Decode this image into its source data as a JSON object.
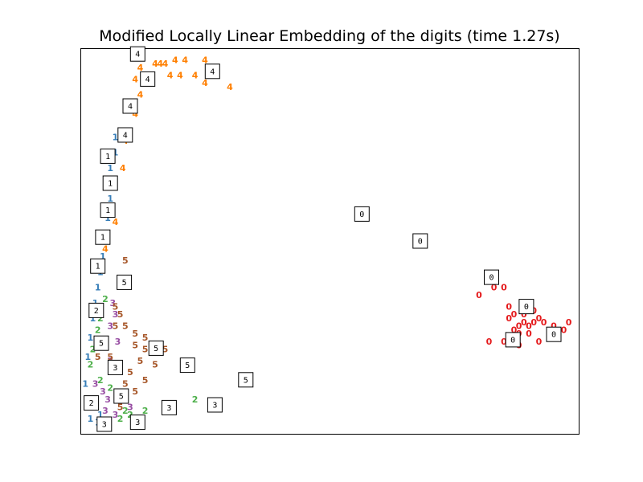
{
  "chart_data": {
    "type": "scatter",
    "title": "Modified Locally Linear Embedding of the digits (time 1.27s)",
    "xlabel": "",
    "ylabel": "",
    "xlim": [
      0,
      1
    ],
    "ylim": [
      0,
      1
    ],
    "grid": false,
    "series": [
      {
        "label": "0",
        "color": "#e41a1c",
        "points": [
          [
            0.85,
            0.38
          ],
          [
            0.83,
            0.38
          ],
          [
            0.86,
            0.3
          ],
          [
            0.87,
            0.27
          ],
          [
            0.88,
            0.28
          ],
          [
            0.89,
            0.29
          ],
          [
            0.9,
            0.28
          ],
          [
            0.91,
            0.29
          ],
          [
            0.88,
            0.26
          ],
          [
            0.92,
            0.3
          ],
          [
            0.93,
            0.29
          ],
          [
            0.94,
            0.26
          ],
          [
            0.9,
            0.26
          ],
          [
            0.87,
            0.31
          ],
          [
            0.89,
            0.31
          ],
          [
            0.91,
            0.32
          ],
          [
            0.95,
            0.28
          ],
          [
            0.97,
            0.27
          ],
          [
            0.98,
            0.29
          ],
          [
            0.96,
            0.25
          ],
          [
            0.85,
            0.24
          ],
          [
            0.82,
            0.24
          ],
          [
            0.88,
            0.23
          ],
          [
            0.92,
            0.24
          ],
          [
            0.86,
            0.33
          ],
          [
            0.8,
            0.36
          ]
        ]
      },
      {
        "label": "1",
        "color": "#377eb8",
        "points": [
          [
            0.07,
            0.77
          ],
          [
            0.07,
            0.73
          ],
          [
            0.06,
            0.69
          ],
          [
            0.065,
            0.65
          ],
          [
            0.06,
            0.61
          ],
          [
            0.055,
            0.56
          ],
          [
            0.05,
            0.5
          ],
          [
            0.045,
            0.46
          ],
          [
            0.04,
            0.42
          ],
          [
            0.035,
            0.38
          ],
          [
            0.03,
            0.34
          ],
          [
            0.025,
            0.3
          ],
          [
            0.02,
            0.25
          ],
          [
            0.015,
            0.2
          ],
          [
            0.01,
            0.13
          ],
          [
            0.015,
            0.08
          ],
          [
            0.02,
            0.04
          ],
          [
            0.035,
            0.03
          ],
          [
            0.04,
            0.05
          ]
        ]
      },
      {
        "label": "2",
        "color": "#4daf4a",
        "points": [
          [
            0.05,
            0.35
          ],
          [
            0.04,
            0.3
          ],
          [
            0.035,
            0.27
          ],
          [
            0.025,
            0.22
          ],
          [
            0.02,
            0.18
          ],
          [
            0.04,
            0.14
          ],
          [
            0.06,
            0.12
          ],
          [
            0.09,
            0.06
          ],
          [
            0.1,
            0.05
          ],
          [
            0.13,
            0.06
          ],
          [
            0.23,
            0.09
          ],
          [
            0.08,
            0.04
          ]
        ]
      },
      {
        "label": "3",
        "color": "#984ea3",
        "points": [
          [
            0.065,
            0.34
          ],
          [
            0.07,
            0.31
          ],
          [
            0.06,
            0.28
          ],
          [
            0.075,
            0.24
          ],
          [
            0.06,
            0.19
          ],
          [
            0.03,
            0.13
          ],
          [
            0.045,
            0.11
          ],
          [
            0.055,
            0.09
          ],
          [
            0.07,
            0.05
          ],
          [
            0.05,
            0.06
          ],
          [
            0.1,
            0.07
          ]
        ]
      },
      {
        "label": "4",
        "color": "#ff7f00",
        "points": [
          [
            0.12,
            0.99
          ],
          [
            0.15,
            0.96
          ],
          [
            0.16,
            0.96
          ],
          [
            0.17,
            0.96
          ],
          [
            0.19,
            0.97
          ],
          [
            0.21,
            0.97
          ],
          [
            0.25,
            0.97
          ],
          [
            0.18,
            0.93
          ],
          [
            0.2,
            0.93
          ],
          [
            0.23,
            0.93
          ],
          [
            0.25,
            0.91
          ],
          [
            0.3,
            0.9
          ],
          [
            0.12,
            0.95
          ],
          [
            0.11,
            0.92
          ],
          [
            0.12,
            0.88
          ],
          [
            0.11,
            0.83
          ],
          [
            0.09,
            0.76
          ],
          [
            0.085,
            0.69
          ],
          [
            0.07,
            0.55
          ],
          [
            0.05,
            0.48
          ]
        ]
      },
      {
        "label": "5",
        "color": "#a65628",
        "points": [
          [
            0.09,
            0.45
          ],
          [
            0.07,
            0.33
          ],
          [
            0.08,
            0.31
          ],
          [
            0.07,
            0.28
          ],
          [
            0.09,
            0.28
          ],
          [
            0.11,
            0.26
          ],
          [
            0.11,
            0.23
          ],
          [
            0.13,
            0.22
          ],
          [
            0.12,
            0.19
          ],
          [
            0.1,
            0.16
          ],
          [
            0.09,
            0.13
          ],
          [
            0.06,
            0.2
          ],
          [
            0.05,
            0.24
          ],
          [
            0.035,
            0.2
          ],
          [
            0.13,
            0.25
          ],
          [
            0.15,
            0.22
          ],
          [
            0.17,
            0.22
          ],
          [
            0.15,
            0.18
          ],
          [
            0.13,
            0.14
          ],
          [
            0.11,
            0.11
          ],
          [
            0.08,
            0.07
          ]
        ]
      }
    ],
    "thumbnails": [
      {
        "digit": "4",
        "x": 0.115,
        "y": 0.985
      },
      {
        "digit": "4",
        "x": 0.135,
        "y": 0.92
      },
      {
        "digit": "4",
        "x": 0.265,
        "y": 0.94
      },
      {
        "digit": "4",
        "x": 0.1,
        "y": 0.85
      },
      {
        "digit": "4",
        "x": 0.09,
        "y": 0.775
      },
      {
        "digit": "1",
        "x": 0.055,
        "y": 0.72
      },
      {
        "digit": "1",
        "x": 0.06,
        "y": 0.65
      },
      {
        "digit": "1",
        "x": 0.055,
        "y": 0.58
      },
      {
        "digit": "1",
        "x": 0.045,
        "y": 0.51
      },
      {
        "digit": "1",
        "x": 0.035,
        "y": 0.435
      },
      {
        "digit": "5",
        "x": 0.088,
        "y": 0.393
      },
      {
        "digit": "2",
        "x": 0.032,
        "y": 0.32
      },
      {
        "digit": "5",
        "x": 0.042,
        "y": 0.235
      },
      {
        "digit": "5",
        "x": 0.152,
        "y": 0.222
      },
      {
        "digit": "5",
        "x": 0.215,
        "y": 0.178
      },
      {
        "digit": "5",
        "x": 0.332,
        "y": 0.14
      },
      {
        "digit": "3",
        "x": 0.07,
        "y": 0.172
      },
      {
        "digit": "5",
        "x": 0.082,
        "y": 0.098
      },
      {
        "digit": "2",
        "x": 0.022,
        "y": 0.08
      },
      {
        "digit": "3",
        "x": 0.048,
        "y": 0.025
      },
      {
        "digit": "3",
        "x": 0.115,
        "y": 0.03
      },
      {
        "digit": "3",
        "x": 0.178,
        "y": 0.068
      },
      {
        "digit": "3",
        "x": 0.27,
        "y": 0.075
      },
      {
        "digit": "0",
        "x": 0.565,
        "y": 0.57
      },
      {
        "digit": "0",
        "x": 0.682,
        "y": 0.5
      },
      {
        "digit": "0",
        "x": 0.825,
        "y": 0.406
      },
      {
        "digit": "0",
        "x": 0.895,
        "y": 0.33
      },
      {
        "digit": "0",
        "x": 0.868,
        "y": 0.244
      },
      {
        "digit": "0",
        "x": 0.95,
        "y": 0.258
      }
    ]
  }
}
